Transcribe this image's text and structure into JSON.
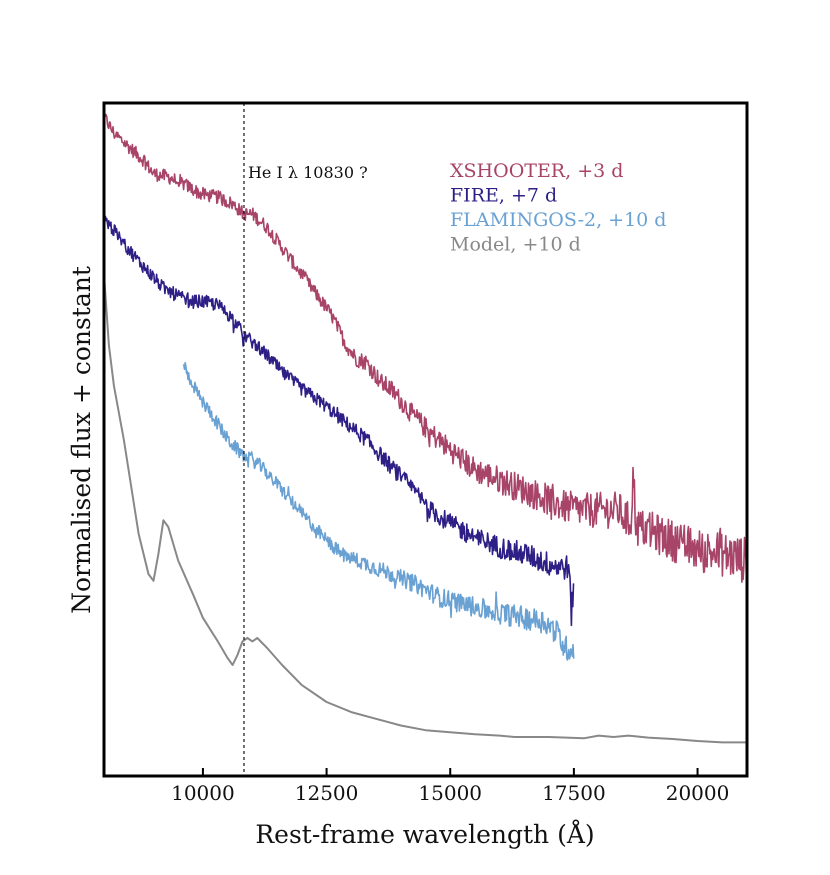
{
  "chart_data": {
    "type": "line",
    "title": "",
    "xlabel": "Rest-frame wavelength (Å)",
    "ylabel": "Normalised flux + constant",
    "xlim": [
      8000,
      21000
    ],
    "ylim": [
      0,
      1
    ],
    "x_ticks": [
      10000,
      12500,
      15000,
      17500,
      20000
    ],
    "x_tick_labels": [
      "10000",
      "12500",
      "15000",
      "17500",
      "20000"
    ],
    "y_ticks_shown": false,
    "grid": false,
    "legend_position": "top-right",
    "vline": {
      "x": 10830,
      "style": "dotted",
      "label": "He I λ 10830 ?"
    },
    "series": [
      {
        "name": "XSHOOTER, +3 d",
        "color": "#A84468",
        "noise": 0.01,
        "points": [
          [
            8000,
            0.98
          ],
          [
            8200,
            0.955
          ],
          [
            8500,
            0.935
          ],
          [
            8800,
            0.915
          ],
          [
            9000,
            0.895
          ],
          [
            9300,
            0.89
          ],
          [
            9600,
            0.88
          ],
          [
            9700,
            0.876
          ],
          [
            9950,
            0.865
          ],
          [
            10300,
            0.86
          ],
          [
            10600,
            0.85
          ],
          [
            10830,
            0.835
          ],
          [
            11000,
            0.835
          ],
          [
            11300,
            0.815
          ],
          [
            11600,
            0.785
          ],
          [
            12000,
            0.745
          ],
          [
            12300,
            0.715
          ],
          [
            12600,
            0.685
          ],
          [
            12900,
            0.64
          ],
          [
            13100,
            0.62
          ],
          [
            13300,
            0.615
          ],
          [
            13600,
            0.585
          ],
          [
            13800,
            0.575
          ],
          [
            14200,
            0.54
          ],
          [
            14600,
            0.51
          ],
          [
            15000,
            0.485
          ],
          [
            15500,
            0.455
          ],
          [
            16000,
            0.44
          ],
          [
            16500,
            0.425
          ],
          [
            17000,
            0.41
          ],
          [
            17300,
            0.4
          ],
          [
            17700,
            0.395
          ],
          [
            18400,
            0.395
          ],
          [
            18650,
            0.375
          ],
          [
            18700,
            0.45
          ],
          [
            18760,
            0.37
          ],
          [
            19000,
            0.365
          ],
          [
            19500,
            0.35
          ],
          [
            20000,
            0.335
          ],
          [
            20500,
            0.33
          ],
          [
            21000,
            0.32
          ]
        ]
      },
      {
        "name": "FIRE, +7 d",
        "color": "#2D1F86",
        "noise": 0.01,
        "points": [
          [
            8000,
            0.83
          ],
          [
            8300,
            0.8
          ],
          [
            8700,
            0.765
          ],
          [
            9200,
            0.725
          ],
          [
            9700,
            0.705
          ],
          [
            10000,
            0.705
          ],
          [
            10300,
            0.7
          ],
          [
            10600,
            0.68
          ],
          [
            10830,
            0.655
          ],
          [
            11000,
            0.645
          ],
          [
            11300,
            0.625
          ],
          [
            11600,
            0.6
          ],
          [
            12000,
            0.575
          ],
          [
            12400,
            0.555
          ],
          [
            12800,
            0.53
          ],
          [
            13300,
            0.5
          ],
          [
            13800,
            0.46
          ],
          [
            14200,
            0.43
          ],
          [
            14600,
            0.395
          ],
          [
            15000,
            0.375
          ],
          [
            15500,
            0.355
          ],
          [
            16000,
            0.34
          ],
          [
            16500,
            0.33
          ],
          [
            17000,
            0.315
          ],
          [
            17300,
            0.31
          ],
          [
            17400,
            0.31
          ],
          [
            17450,
            0.24
          ],
          [
            17500,
            0.29
          ]
        ]
      },
      {
        "name": "FLAMINGOS-2, +10 d",
        "color": "#6AA1D3",
        "noise": 0.01,
        "points": [
          [
            9600,
            0.615
          ],
          [
            9700,
            0.595
          ],
          [
            10000,
            0.555
          ],
          [
            10200,
            0.535
          ],
          [
            10500,
            0.5
          ],
          [
            10830,
            0.475
          ],
          [
            11100,
            0.465
          ],
          [
            11300,
            0.45
          ],
          [
            11600,
            0.425
          ],
          [
            12000,
            0.39
          ],
          [
            12500,
            0.35
          ],
          [
            12800,
            0.33
          ],
          [
            13300,
            0.315
          ],
          [
            13800,
            0.3
          ],
          [
            14300,
            0.285
          ],
          [
            14800,
            0.265
          ],
          [
            15300,
            0.255
          ],
          [
            15800,
            0.245
          ],
          [
            16500,
            0.235
          ],
          [
            16900,
            0.23
          ],
          [
            17200,
            0.21
          ],
          [
            17300,
            0.19
          ],
          [
            17500,
            0.19
          ]
        ]
      },
      {
        "name": "Model, +10 d",
        "color": "#888888",
        "noise": 0,
        "points": [
          [
            8000,
            0.745
          ],
          [
            8100,
            0.64
          ],
          [
            8200,
            0.58
          ],
          [
            8400,
            0.5
          ],
          [
            8700,
            0.36
          ],
          [
            8900,
            0.3
          ],
          [
            9000,
            0.29
          ],
          [
            9100,
            0.33
          ],
          [
            9200,
            0.38
          ],
          [
            9300,
            0.37
          ],
          [
            9500,
            0.32
          ],
          [
            9800,
            0.27
          ],
          [
            10000,
            0.235
          ],
          [
            10300,
            0.2
          ],
          [
            10500,
            0.175
          ],
          [
            10600,
            0.165
          ],
          [
            10700,
            0.18
          ],
          [
            10800,
            0.2
          ],
          [
            10900,
            0.205
          ],
          [
            11000,
            0.2
          ],
          [
            11100,
            0.205
          ],
          [
            11300,
            0.19
          ],
          [
            11600,
            0.165
          ],
          [
            12000,
            0.135
          ],
          [
            12500,
            0.11
          ],
          [
            13000,
            0.095
          ],
          [
            13500,
            0.085
          ],
          [
            14000,
            0.075
          ],
          [
            14500,
            0.068
          ],
          [
            15000,
            0.065
          ],
          [
            15500,
            0.062
          ],
          [
            16000,
            0.06
          ],
          [
            16300,
            0.058
          ],
          [
            17000,
            0.058
          ],
          [
            17700,
            0.056
          ],
          [
            18000,
            0.06
          ],
          [
            18300,
            0.058
          ],
          [
            18600,
            0.06
          ],
          [
            19000,
            0.057
          ],
          [
            19500,
            0.055
          ],
          [
            20000,
            0.052
          ],
          [
            20500,
            0.05
          ],
          [
            21000,
            0.05
          ]
        ]
      }
    ],
    "legend": [
      {
        "label": "XSHOOTER, +3 d",
        "color": "#A84468"
      },
      {
        "label": "FIRE, +7 d",
        "color": "#2D1F86"
      },
      {
        "label": "FLAMINGOS-2, +10 d",
        "color": "#6AA1D3"
      },
      {
        "label": "Model, +10 d",
        "color": "#888888"
      }
    ]
  }
}
